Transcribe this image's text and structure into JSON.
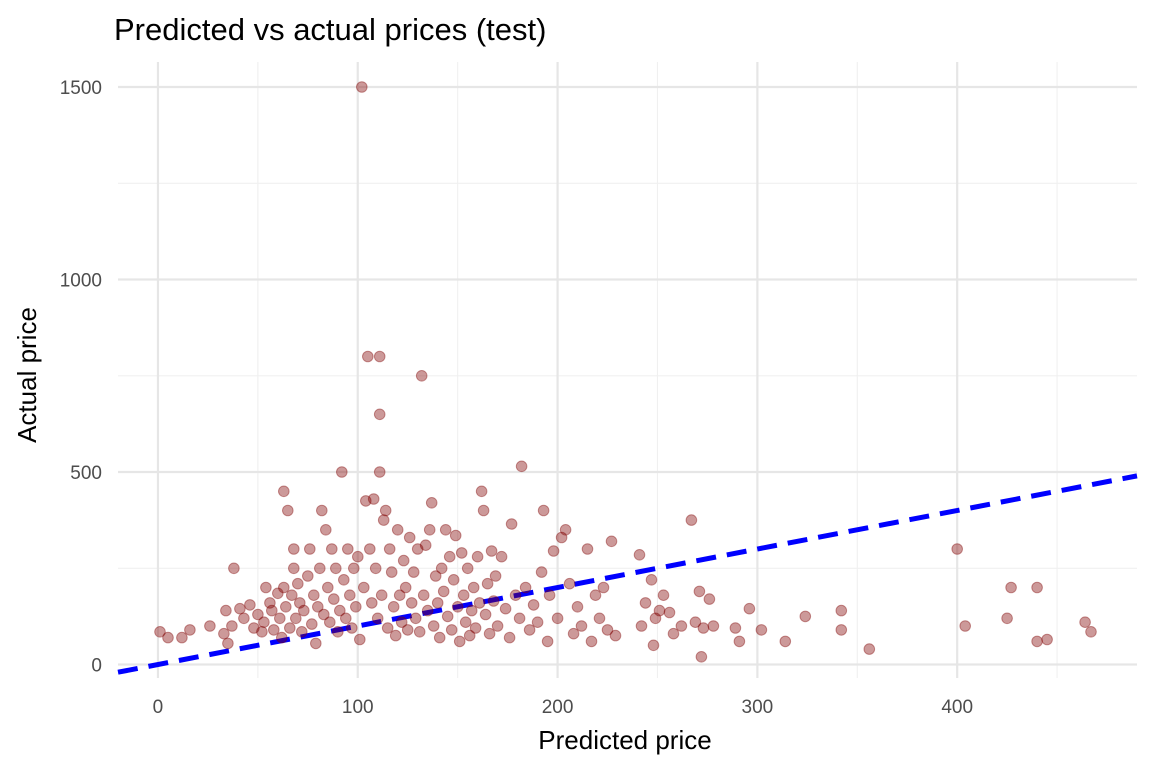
{
  "chart_data": {
    "type": "scatter",
    "title": "Predicted vs actual prices (test)",
    "xlabel": "Predicted price",
    "ylabel": "Actual price",
    "xlim": [
      -20,
      490
    ],
    "ylim": [
      -35,
      1565
    ],
    "x_ticks": [
      0,
      100,
      200,
      300,
      400
    ],
    "y_ticks": [
      0,
      500,
      1000,
      1500
    ],
    "grid": true,
    "legend": "none",
    "colors": {
      "points": "#800000",
      "reference_line": "#0000ff"
    },
    "reference_line": {
      "slope": 1,
      "intercept": 0,
      "style": "dashed"
    },
    "points": [
      [
        1,
        85
      ],
      [
        5,
        70
      ],
      [
        12,
        70
      ],
      [
        16,
        90
      ],
      [
        26,
        100
      ],
      [
        33,
        80
      ],
      [
        34,
        140
      ],
      [
        35,
        55
      ],
      [
        37,
        100
      ],
      [
        38,
        250
      ],
      [
        41,
        145
      ],
      [
        43,
        120
      ],
      [
        46,
        155
      ],
      [
        48,
        95
      ],
      [
        50,
        130
      ],
      [
        52,
        85
      ],
      [
        53,
        110
      ],
      [
        54,
        200
      ],
      [
        56,
        160
      ],
      [
        57,
        140
      ],
      [
        58,
        90
      ],
      [
        60,
        185
      ],
      [
        61,
        120
      ],
      [
        62,
        70
      ],
      [
        63,
        450
      ],
      [
        63,
        200
      ],
      [
        64,
        150
      ],
      [
        65,
        400
      ],
      [
        66,
        95
      ],
      [
        67,
        180
      ],
      [
        68,
        250
      ],
      [
        68,
        300
      ],
      [
        69,
        120
      ],
      [
        70,
        210
      ],
      [
        71,
        160
      ],
      [
        72,
        85
      ],
      [
        73,
        140
      ],
      [
        75,
        230
      ],
      [
        76,
        300
      ],
      [
        77,
        105
      ],
      [
        78,
        180
      ],
      [
        79,
        55
      ],
      [
        80,
        150
      ],
      [
        81,
        250
      ],
      [
        82,
        400
      ],
      [
        83,
        130
      ],
      [
        84,
        350
      ],
      [
        85,
        200
      ],
      [
        86,
        110
      ],
      [
        87,
        300
      ],
      [
        88,
        170
      ],
      [
        89,
        250
      ],
      [
        90,
        85
      ],
      [
        91,
        140
      ],
      [
        92,
        500
      ],
      [
        93,
        220
      ],
      [
        94,
        120
      ],
      [
        95,
        300
      ],
      [
        96,
        180
      ],
      [
        97,
        95
      ],
      [
        98,
        250
      ],
      [
        99,
        150
      ],
      [
        100,
        280
      ],
      [
        101,
        65
      ],
      [
        102,
        1500
      ],
      [
        103,
        200
      ],
      [
        104,
        425
      ],
      [
        105,
        800
      ],
      [
        106,
        300
      ],
      [
        107,
        160
      ],
      [
        108,
        430
      ],
      [
        109,
        250
      ],
      [
        110,
        120
      ],
      [
        111,
        800
      ],
      [
        111,
        650
      ],
      [
        111,
        500
      ],
      [
        112,
        180
      ],
      [
        113,
        375
      ],
      [
        114,
        400
      ],
      [
        115,
        95
      ],
      [
        116,
        300
      ],
      [
        117,
        240
      ],
      [
        118,
        150
      ],
      [
        119,
        75
      ],
      [
        120,
        350
      ],
      [
        121,
        180
      ],
      [
        122,
        110
      ],
      [
        123,
        270
      ],
      [
        124,
        200
      ],
      [
        125,
        90
      ],
      [
        126,
        330
      ],
      [
        127,
        160
      ],
      [
        128,
        240
      ],
      [
        129,
        120
      ],
      [
        130,
        300
      ],
      [
        131,
        85
      ],
      [
        132,
        750
      ],
      [
        133,
        180
      ],
      [
        134,
        310
      ],
      [
        135,
        140
      ],
      [
        136,
        350
      ],
      [
        137,
        420
      ],
      [
        138,
        100
      ],
      [
        139,
        230
      ],
      [
        140,
        160
      ],
      [
        141,
        70
      ],
      [
        142,
        250
      ],
      [
        143,
        190
      ],
      [
        144,
        350
      ],
      [
        145,
        125
      ],
      [
        146,
        280
      ],
      [
        147,
        90
      ],
      [
        148,
        220
      ],
      [
        149,
        335
      ],
      [
        150,
        150
      ],
      [
        151,
        60
      ],
      [
        152,
        290
      ],
      [
        153,
        180
      ],
      [
        154,
        110
      ],
      [
        155,
        250
      ],
      [
        156,
        75
      ],
      [
        157,
        140
      ],
      [
        158,
        200
      ],
      [
        159,
        95
      ],
      [
        160,
        280
      ],
      [
        161,
        160
      ],
      [
        162,
        450
      ],
      [
        163,
        400
      ],
      [
        164,
        130
      ],
      [
        165,
        210
      ],
      [
        166,
        80
      ],
      [
        167,
        295
      ],
      [
        168,
        165
      ],
      [
        169,
        230
      ],
      [
        170,
        100
      ],
      [
        172,
        280
      ],
      [
        174,
        145
      ],
      [
        176,
        70
      ],
      [
        177,
        365
      ],
      [
        179,
        180
      ],
      [
        181,
        120
      ],
      [
        182,
        515
      ],
      [
        184,
        200
      ],
      [
        186,
        90
      ],
      [
        188,
        155
      ],
      [
        190,
        110
      ],
      [
        192,
        240
      ],
      [
        193,
        400
      ],
      [
        195,
        60
      ],
      [
        196,
        180
      ],
      [
        198,
        295
      ],
      [
        200,
        120
      ],
      [
        202,
        330
      ],
      [
        204,
        350
      ],
      [
        206,
        210
      ],
      [
        208,
        80
      ],
      [
        210,
        150
      ],
      [
        212,
        100
      ],
      [
        215,
        300
      ],
      [
        217,
        60
      ],
      [
        219,
        180
      ],
      [
        221,
        120
      ],
      [
        223,
        200
      ],
      [
        225,
        90
      ],
      [
        227,
        320
      ],
      [
        229,
        75
      ],
      [
        241,
        285
      ],
      [
        242,
        100
      ],
      [
        244,
        160
      ],
      [
        247,
        220
      ],
      [
        248,
        50
      ],
      [
        249,
        120
      ],
      [
        251,
        140
      ],
      [
        253,
        180
      ],
      [
        256,
        135
      ],
      [
        258,
        80
      ],
      [
        262,
        100
      ],
      [
        267,
        375
      ],
      [
        269,
        110
      ],
      [
        271,
        190
      ],
      [
        272,
        20
      ],
      [
        273,
        95
      ],
      [
        276,
        170
      ],
      [
        278,
        100
      ],
      [
        289,
        95
      ],
      [
        291,
        60
      ],
      [
        296,
        145
      ],
      [
        302,
        90
      ],
      [
        314,
        60
      ],
      [
        324,
        125
      ],
      [
        342,
        140
      ],
      [
        342,
        90
      ],
      [
        356,
        40
      ],
      [
        400,
        300
      ],
      [
        404,
        100
      ],
      [
        425,
        120
      ],
      [
        427,
        200
      ],
      [
        440,
        200
      ],
      [
        440,
        60
      ],
      [
        445,
        65
      ],
      [
        464,
        110
      ],
      [
        467,
        85
      ]
    ]
  }
}
